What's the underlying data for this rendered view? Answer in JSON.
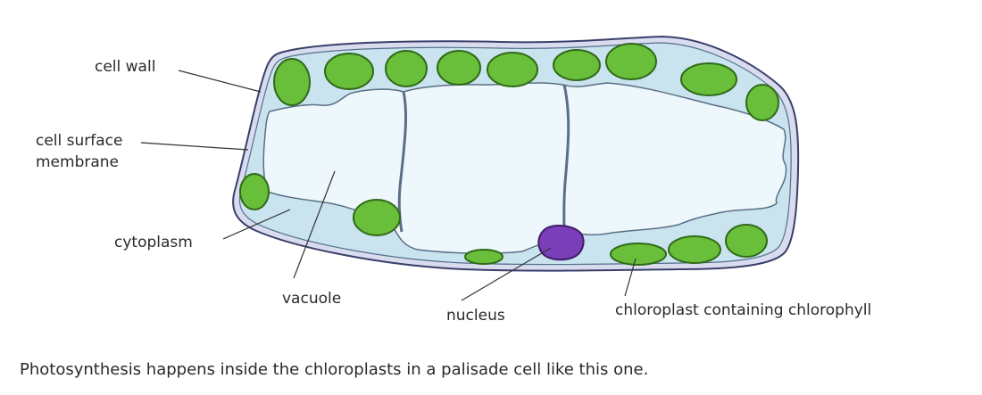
{
  "labels": {
    "cell_wall": "cell wall",
    "cell_surface_membrane_line1": "cell surface",
    "cell_surface_membrane_line2": "membrane",
    "cytoplasm": "cytoplasm",
    "vacuole": "vacuole",
    "nucleus": "nucleus",
    "chloroplast": "chloroplast containing chlorophyll"
  },
  "caption": "Photosynthesis happens inside the chloroplasts in a palisade cell like this one.",
  "colors": {
    "cell_wall_fill": "#d9dcee",
    "cell_wall_stroke": "#3a3f6a",
    "cytoplasm": "#c9e3ef",
    "vacuole": "#eef7fb",
    "chloroplast": "#6abf3a",
    "chloroplast_stroke": "#2f6a18",
    "nucleus": "#7a3fb8",
    "leader_line": "#333333"
  }
}
